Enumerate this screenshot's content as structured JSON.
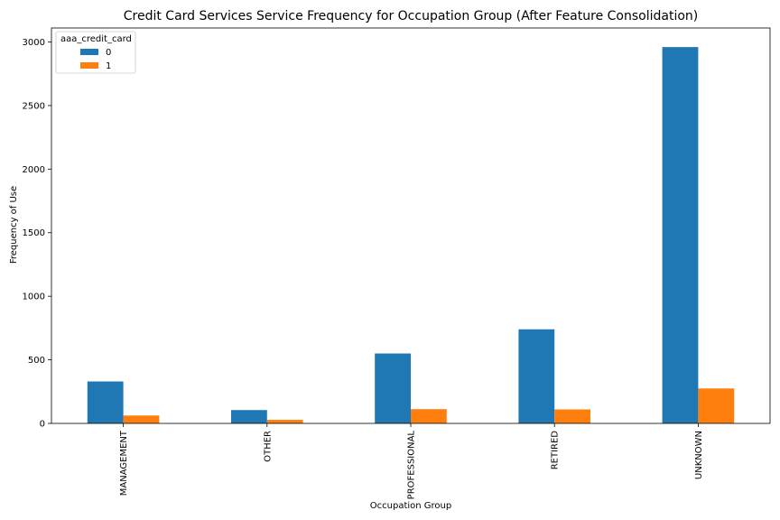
{
  "chart_data": {
    "type": "bar",
    "title": "Credit Card Services Service Frequency for Occupation Group (After Feature Consolidation)",
    "xlabel": "Occupation Group",
    "ylabel": "Frequency of Use",
    "categories": [
      "MANAGEMENT",
      "OTHER",
      "PROFESSIONAL",
      "RETIRED",
      "UNKNOWN"
    ],
    "series": [
      {
        "name": "0",
        "values": [
          330,
          105,
          550,
          740,
          2960
        ],
        "color": "#1f77b4"
      },
      {
        "name": "1",
        "values": [
          62,
          28,
          112,
          110,
          275
        ],
        "color": "#ff7f0e"
      }
    ],
    "ylim": [
      0,
      3110
    ],
    "yticks": [
      0,
      500,
      1000,
      1500,
      2000,
      2500,
      3000
    ],
    "grid": false,
    "legend": {
      "title": "aaa_credit_card",
      "placement": "upper-left"
    }
  }
}
